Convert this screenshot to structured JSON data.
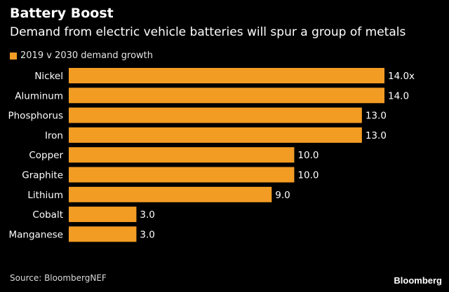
{
  "chart_data": {
    "type": "bar",
    "orientation": "horizontal",
    "title": "Battery Boost",
    "subtitle": "Demand from electric vehicle batteries will spur a group of metals",
    "categories": [
      "Nickel",
      "Aluminum",
      "Phosphorus",
      "Iron",
      "Copper",
      "Graphite",
      "Lithium",
      "Cobalt",
      "Manganese"
    ],
    "series": [
      {
        "name": "2019 v 2030 demand growth",
        "values": [
          14.0,
          14.0,
          13.0,
          13.0,
          10.0,
          10.0,
          9.0,
          3.0,
          3.0
        ],
        "value_labels": [
          "14.0x",
          "14.0",
          "13.0",
          "13.0",
          "10.0",
          "10.0",
          "9.0",
          "3.0",
          "3.0"
        ]
      }
    ],
    "xlim": [
      0,
      14
    ],
    "grid": false,
    "legend_position": "top-left"
  },
  "colors": {
    "bar": "#f39c24",
    "background": "#000000",
    "text": "#ffffff"
  },
  "footer": {
    "source": "Source: BloombergNEF",
    "brand": "Bloomberg"
  }
}
